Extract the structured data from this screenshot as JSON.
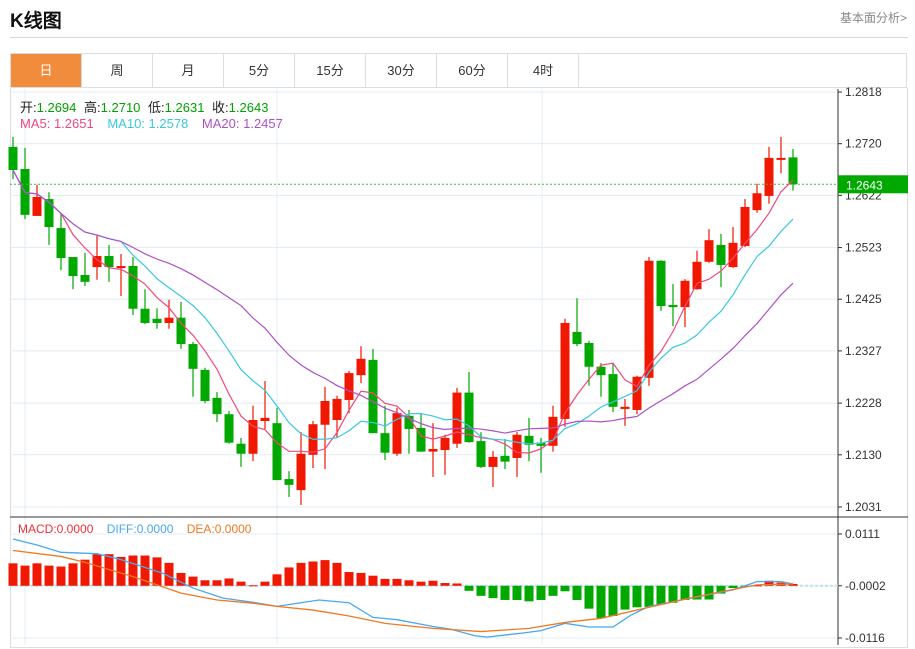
{
  "header": {
    "title": "K线图",
    "link": "基本面分析>"
  },
  "tabs": [
    "日",
    "周",
    "月",
    "5分",
    "15分",
    "30分",
    "60分",
    "4时"
  ],
  "ohlc": {
    "open_label": "开:",
    "open": "1.2694",
    "high_label": "高:",
    "high": "1.2710",
    "low_label": "低:",
    "low": "1.2631",
    "close_label": "收:",
    "close": "1.2643"
  },
  "ma": {
    "ma5": "MA5: 1.2651",
    "ma10": "MA10: 1.2578",
    "ma20": "MA20: 1.2457"
  },
  "macd_legend": {
    "macd": "MACD:0.0000",
    "diff": "DIFF:0.0000",
    "dea": "DEA:0.0000"
  },
  "colors": {
    "up": "#f01800",
    "down": "#00a800",
    "ma5": "#f0487c",
    "ma10": "#38c8e0",
    "ma20": "#b050c8",
    "diff": "#48a8f0",
    "dea": "#f07820",
    "accent": "#f08c3c"
  },
  "chart_data": {
    "type": "candlestick",
    "y_ticks": [
      "1.2818",
      "1.2720",
      "1.2622",
      "1.2523",
      "1.2425",
      "1.2327",
      "1.2228",
      "1.2130",
      "1.2031"
    ],
    "ylim": [
      1.2031,
      1.2818
    ],
    "current_price": "1.2643",
    "candles": [
      [
        1.2714,
        1.2733,
        1.2653,
        1.267
      ],
      [
        1.2672,
        1.2712,
        1.2577,
        1.2585
      ],
      [
        1.2583,
        1.2642,
        1.2583,
        1.2619
      ],
      [
        1.2615,
        1.2628,
        1.2528,
        1.2562
      ],
      [
        1.256,
        1.2589,
        1.248,
        1.2503
      ],
      [
        1.2505,
        1.2505,
        1.2444,
        1.2469
      ],
      [
        1.2471,
        1.2513,
        1.245,
        1.2458
      ],
      [
        1.2486,
        1.2547,
        1.2462,
        1.2507
      ],
      [
        1.2507,
        1.2528,
        1.2458,
        1.2486
      ],
      [
        1.2484,
        1.2511,
        1.2431,
        1.2488
      ],
      [
        1.2488,
        1.2505,
        1.2395,
        1.2407
      ],
      [
        1.2407,
        1.2444,
        1.2378,
        1.238
      ],
      [
        1.2388,
        1.2408,
        1.2369,
        1.238
      ],
      [
        1.238,
        1.2424,
        1.2369,
        1.239
      ],
      [
        1.239,
        1.242,
        1.2331,
        1.234
      ],
      [
        1.234,
        1.2344,
        1.224,
        1.2293
      ],
      [
        1.2291,
        1.2295,
        1.2228,
        1.2232
      ],
      [
        1.2238,
        1.2249,
        1.2192,
        1.2207
      ],
      [
        1.2207,
        1.2213,
        1.2151,
        1.2153
      ],
      [
        1.2151,
        1.2162,
        1.2107,
        1.2132
      ],
      [
        1.2132,
        1.2223,
        1.2118,
        1.2196
      ],
      [
        1.2194,
        1.227,
        1.2179,
        1.22
      ],
      [
        1.219,
        1.2219,
        1.2082,
        1.2082
      ],
      [
        1.2084,
        1.2099,
        1.205,
        1.2073
      ],
      [
        1.2063,
        1.2173,
        1.2035,
        1.2132
      ],
      [
        1.213,
        1.2194,
        1.2105,
        1.2188
      ],
      [
        1.2187,
        1.2259,
        1.2103,
        1.2232
      ],
      [
        1.2196,
        1.2242,
        1.2162,
        1.2236
      ],
      [
        1.2234,
        1.2289,
        1.2209,
        1.2285
      ],
      [
        1.2281,
        1.2336,
        1.2266,
        1.2312
      ],
      [
        1.231,
        1.2331,
        1.2171,
        1.2171
      ],
      [
        1.2171,
        1.2223,
        1.212,
        1.2134
      ],
      [
        1.2132,
        1.2219,
        1.2128,
        1.2209
      ],
      [
        1.2204,
        1.2215,
        1.2132,
        1.2179
      ],
      [
        1.2181,
        1.2209,
        1.2136,
        1.2136
      ],
      [
        1.2136,
        1.219,
        1.2088,
        1.2141
      ],
      [
        1.2139,
        1.2168,
        1.2092,
        1.2162
      ],
      [
        1.2151,
        1.2257,
        1.2143,
        1.2248
      ],
      [
        1.2248,
        1.2287,
        1.2153,
        1.2154
      ],
      [
        1.2156,
        1.2173,
        1.2105,
        1.2107
      ],
      [
        1.2107,
        1.2137,
        1.2069,
        1.2126
      ],
      [
        1.2128,
        1.216,
        1.2103,
        1.2117
      ],
      [
        1.2124,
        1.2173,
        1.2088,
        1.2168
      ],
      [
        1.2166,
        1.22,
        1.2118,
        1.2149
      ],
      [
        1.2153,
        1.2162,
        1.2096,
        1.2147
      ],
      [
        1.2147,
        1.2223,
        1.2136,
        1.2202
      ],
      [
        1.2198,
        1.2388,
        1.2183,
        1.238
      ],
      [
        1.2363,
        1.2427,
        1.2336,
        1.234
      ],
      [
        1.2342,
        1.2346,
        1.2261,
        1.2297
      ],
      [
        1.2297,
        1.2304,
        1.224,
        1.2281
      ],
      [
        1.2283,
        1.2304,
        1.2211,
        1.2221
      ],
      [
        1.2217,
        1.2236,
        1.2185,
        1.2221
      ],
      [
        1.2215,
        1.228,
        1.2207,
        1.2278
      ],
      [
        1.2276,
        1.2505,
        1.2261,
        1.2498
      ],
      [
        1.2498,
        1.2499,
        1.2403,
        1.2412
      ],
      [
        1.2414,
        1.2454,
        1.2374,
        1.241
      ],
      [
        1.241,
        1.2463,
        1.2372,
        1.246
      ],
      [
        1.2444,
        1.2517,
        1.2443,
        1.2496
      ],
      [
        1.2496,
        1.2558,
        1.2494,
        1.2537
      ],
      [
        1.2528,
        1.2549,
        1.2448,
        1.249
      ],
      [
        1.2486,
        1.2562,
        1.2484,
        1.2532
      ],
      [
        1.2526,
        1.2615,
        1.2524,
        1.26
      ],
      [
        1.2594,
        1.2644,
        1.2589,
        1.2626
      ],
      [
        1.2621,
        1.2714,
        1.2606,
        1.2693
      ],
      [
        1.2691,
        1.2733,
        1.2664,
        1.2693
      ],
      [
        1.2694,
        1.271,
        1.2631,
        1.2643
      ]
    ],
    "macd": {
      "y_ticks": [
        "0.0111",
        "-0.0002",
        "-0.0116"
      ],
      "ylim": [
        -0.0116,
        0.0111
      ],
      "hist": [
        0.0049,
        0.0044,
        0.0049,
        0.0044,
        0.0042,
        0.0049,
        0.0057,
        0.0069,
        0.0069,
        0.0063,
        0.0066,
        0.0066,
        0.0062,
        0.005,
        0.0028,
        0.002,
        0.0012,
        0.0012,
        0.0016,
        0.0009,
        0.0001,
        0.0009,
        0.0025,
        0.004,
        0.005,
        0.0053,
        0.0056,
        0.005,
        0.003,
        0.0028,
        0.0022,
        0.0015,
        0.0015,
        0.0012,
        0.0009,
        0.0011,
        0.0006,
        0.0005,
        -0.0011,
        -0.0022,
        -0.0027,
        -0.0031,
        -0.0031,
        -0.0034,
        -0.0031,
        -0.0022,
        -0.0012,
        -0.0031,
        -0.005,
        -0.0071,
        -0.0066,
        -0.0052,
        -0.0047,
        -0.0046,
        -0.0041,
        -0.0037,
        -0.0031,
        -0.003,
        -0.003,
        -0.0017,
        -0.0005,
        -0.0002,
        0.0001,
        0.0011,
        0.0007,
        0.0004
      ],
      "diff": [
        [
          0,
          0.01
        ],
        [
          2,
          0.0087
        ],
        [
          4,
          0.0071
        ],
        [
          7,
          0.0068
        ],
        [
          9,
          0.0055
        ],
        [
          12.5,
          0.0025
        ],
        [
          15,
          -0.0007
        ],
        [
          17.5,
          -0.0029
        ],
        [
          20,
          -0.0038
        ],
        [
          22,
          -0.0047
        ],
        [
          24,
          -0.0039
        ],
        [
          25.5,
          -0.0033
        ],
        [
          28,
          -0.0039
        ],
        [
          30,
          -0.0071
        ],
        [
          32,
          -0.0076
        ],
        [
          35,
          -0.0091
        ],
        [
          36.5,
          -0.0097
        ],
        [
          38.5,
          -0.0111
        ],
        [
          39.5,
          -0.0114
        ],
        [
          42.5,
          -0.0105
        ],
        [
          44,
          -0.01
        ],
        [
          46,
          -0.0084
        ],
        [
          48,
          -0.0092
        ],
        [
          50,
          -0.0092
        ],
        [
          51.5,
          -0.0066
        ],
        [
          53,
          -0.0047
        ],
        [
          56.5,
          -0.0029
        ],
        [
          60,
          -0.0011
        ],
        [
          62,
          0.0007
        ],
        [
          64,
          0.0007
        ],
        [
          65,
          0.0002
        ]
      ],
      "dea": [
        [
          0,
          0.0075
        ],
        [
          4,
          0.0062
        ],
        [
          6,
          0.0049
        ],
        [
          10,
          0.0018
        ],
        [
          14,
          -0.0018
        ],
        [
          17,
          -0.0033
        ],
        [
          20,
          -0.004
        ],
        [
          22,
          -0.0047
        ],
        [
          25,
          -0.0055
        ],
        [
          28,
          -0.0068
        ],
        [
          31,
          -0.0084
        ],
        [
          35,
          -0.0095
        ],
        [
          39,
          -0.0102
        ],
        [
          43,
          -0.0095
        ],
        [
          46,
          -0.0082
        ],
        [
          49,
          -0.0073
        ],
        [
          52,
          -0.0055
        ],
        [
          56,
          -0.0031
        ],
        [
          59,
          -0.0015
        ],
        [
          62,
          0.0
        ],
        [
          65,
          0.0002
        ]
      ]
    }
  }
}
